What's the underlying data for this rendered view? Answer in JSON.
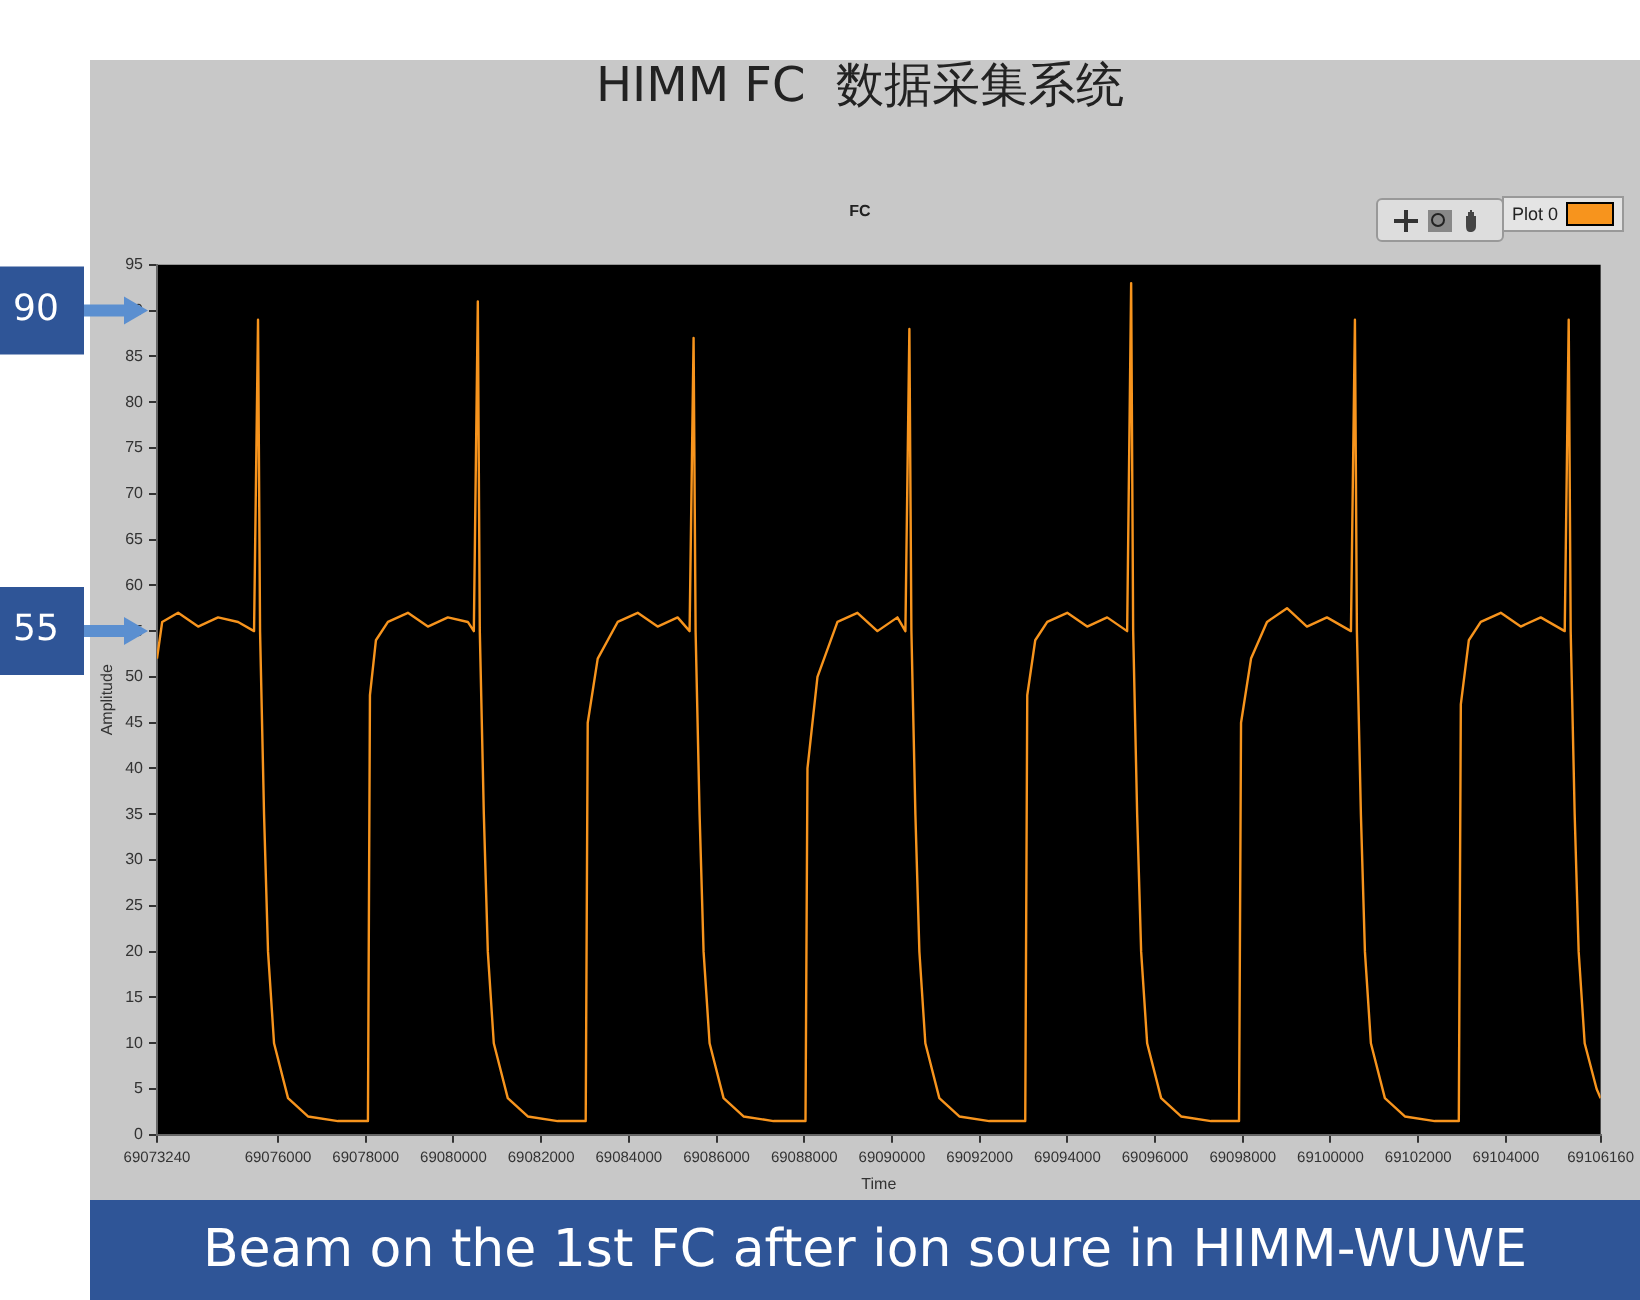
{
  "chart_data": {
    "type": "line",
    "title": "HIMM FC  数据采集系统",
    "subtitle": "FC",
    "xlabel": "Time",
    "ylabel": "Amplitude",
    "xlim": [
      69073240,
      69106160
    ],
    "xticks": [
      69073240,
      69076000,
      69078000,
      69080000,
      69082000,
      69084000,
      69086000,
      69088000,
      69090000,
      69092000,
      69094000,
      69096000,
      69098000,
      69100000,
      69102000,
      69104000,
      69106160
    ],
    "ylim": [
      0,
      95
    ],
    "yticks": [
      0,
      5,
      10,
      15,
      20,
      25,
      30,
      35,
      40,
      45,
      50,
      55,
      60,
      65,
      70,
      75,
      80,
      85,
      90,
      95
    ],
    "grid": false,
    "legend": "top right",
    "marker": "none",
    "line_style": "solid",
    "ref_lines": [
      {
        "axis": "y",
        "value": 90,
        "label": "90"
      },
      {
        "axis": "y",
        "value": 55,
        "label": "55"
      }
    ],
    "annotations": [
      "Beam on the 1st FC after ion soure in HIMM-WUWE"
    ],
    "series": [
      {
        "name": "Plot 0",
        "color": "#f7941d",
        "x": [
          69073240,
          69073358,
          69073722,
          69074178,
          69074633,
          69075089,
          69075453,
          69075544,
          69075590,
          69075681,
          69075772,
          69075909,
          69076228,
          69076683,
          69077367,
          69078050,
          69078096,
          69078232,
          69078506,
          69078961,
          69079417,
          69079873,
          69080328,
          69080465,
          69080556,
          69080601,
          69080693,
          69080784,
          69080920,
          69081239,
          69081695,
          69082378,
          69083016,
          69083062,
          69083290,
          69083745,
          69084201,
          69084656,
          69085112,
          69085385,
          69085476,
          69085522,
          69085613,
          69085704,
          69085841,
          69086160,
          69086615,
          69087299,
          69088028,
          69088073,
          69088301,
          69088757,
          69089212,
          69089668,
          69090124,
          69090306,
          69090397,
          69090443,
          69090534,
          69090625,
          69090761,
          69091080,
          69091536,
          69092219,
          69093039,
          69093085,
          69093267,
          69093541,
          69093996,
          69094452,
          69094907,
          69095363,
          69095454,
          69095500,
          69095591,
          69095682,
          69095819,
          69096138,
          69096593,
          69097277,
          69097914,
          69097960,
          69098188,
          69098552,
          69099008,
          69099463,
          69099919,
          69100466,
          69100557,
          69100602,
          69100693,
          69100785,
          69100921,
          69101240,
          69101696,
          69102379,
          69102926,
          69102972,
          69103154,
          69103427,
          69103883,
          69104338,
          69104794,
          69105341,
          69105432,
          69105477,
          69105568,
          69105659,
          69105796,
          69106069,
          69106160
        ],
        "values": [
          52,
          56,
          57,
          55.5,
          56.5,
          56,
          55,
          89,
          55,
          35,
          20,
          10,
          4,
          2,
          1.5,
          1.5,
          48,
          54,
          56,
          57,
          55.5,
          56.5,
          56,
          55,
          91,
          55,
          35,
          20,
          10,
          4,
          2,
          1.5,
          1.5,
          45,
          52,
          56,
          57,
          55.5,
          56.5,
          55,
          87,
          55,
          35,
          20,
          10,
          4,
          2,
          1.5,
          1.5,
          40,
          50,
          56,
          57,
          55,
          56.5,
          55,
          88,
          55,
          35,
          20,
          10,
          4,
          2,
          1.5,
          1.5,
          48,
          54,
          56,
          57,
          55.5,
          56.5,
          55,
          93,
          55,
          35,
          20,
          10,
          4,
          2,
          1.5,
          1.5,
          45,
          52,
          56,
          57.5,
          55.5,
          56.5,
          55,
          89,
          55,
          35,
          20,
          10,
          4,
          2,
          1.5,
          1.5,
          47,
          54,
          56,
          57,
          55.5,
          56.5,
          55,
          89,
          55,
          35,
          20,
          10,
          5,
          4
        ]
      }
    ]
  }
}
